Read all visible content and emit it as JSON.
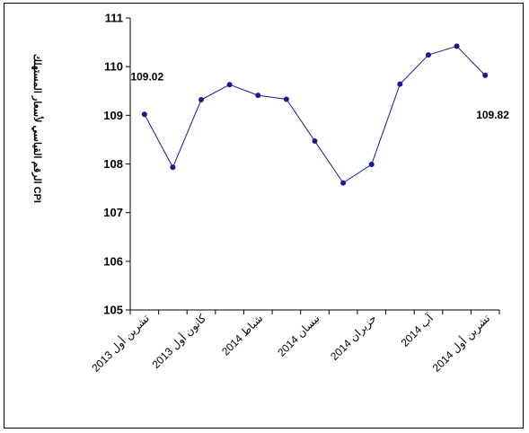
{
  "chart_data": {
    "type": "line",
    "ylabel": "الرقم القياسي لأسعار المستهلك CPI",
    "ylim": [
      105,
      111
    ],
    "yticks": [
      "105",
      "106",
      "107",
      "108",
      "109",
      "110",
      "111"
    ],
    "x_tick_labels": [
      {
        "index": 0,
        "label": "تشرين أول 2013"
      },
      {
        "index": 2,
        "label": "كانون أول 2013"
      },
      {
        "index": 4,
        "label": "شباط 2014"
      },
      {
        "index": 6,
        "label": "نيسان 2014"
      },
      {
        "index": 8,
        "label": "حزيران 2014"
      },
      {
        "index": 10,
        "label": "آب 2014"
      },
      {
        "index": 12,
        "label": "تشرين أول 2014"
      }
    ],
    "series": [
      {
        "values": [
          109.02,
          107.93,
          109.32,
          109.63,
          109.41,
          109.33,
          108.47,
          107.61,
          107.99,
          109.64,
          110.24,
          110.42,
          109.82
        ],
        "color": "#1a1a8c"
      }
    ],
    "data_labels": [
      {
        "index": 0,
        "text": "109.02"
      },
      {
        "index": 12,
        "text": "109.82"
      }
    ],
    "grid": false,
    "legend": "none"
  }
}
